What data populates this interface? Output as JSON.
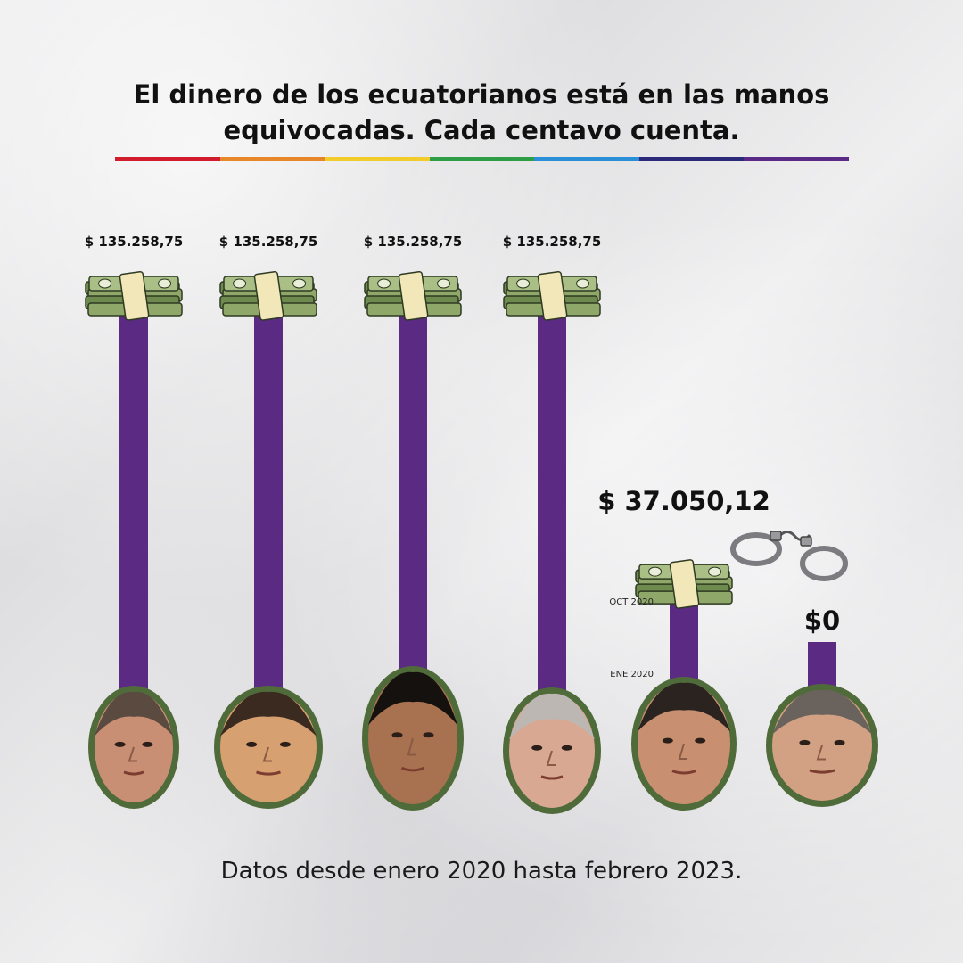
{
  "title_lines": [
    "El dinero de los ecuatorianos está en las manos",
    "equivocadas. Cada centavo cuenta."
  ],
  "rainbow_colors": [
    "#d01c2c",
    "#e8862a",
    "#f2cc2a",
    "#2e9e46",
    "#2a8fd6",
    "#2b2a7a",
    "#5b2a86"
  ],
  "footer": "Datos desde enero 2020 hasta febrero 2023.",
  "colors": {
    "bar": "#5b2a82",
    "portrait_border": "#4f6b3a",
    "money": "#6e8a4e",
    "money_band": "#f1e7b8"
  },
  "chart_data": {
    "type": "bar",
    "title": "El dinero de los ecuatorianos está en las manos equivocadas. Cada centavo cuenta.",
    "categories": [
      "",
      "",
      "",
      "",
      "",
      ""
    ],
    "values": [
      135258.75,
      135258.75,
      135258.75,
      135258.75,
      37050.12,
      0
    ],
    "value_labels": [
      "$ 135.258,75",
      "$ 135.258,75",
      "$ 135.258,75",
      "$ 135.258,75",
      "$ 37.050,12",
      "$0"
    ],
    "annotations": [
      {
        "bar_index": 4,
        "text": "OCT 2020",
        "position": "top"
      },
      {
        "bar_index": 4,
        "text": "ENE 2020",
        "position": "bottom"
      }
    ],
    "markers": [
      "money-stack",
      "money-stack",
      "money-stack",
      "money-stack",
      "money-stack",
      "handcuffs"
    ],
    "grid": false,
    "legend": "none"
  }
}
